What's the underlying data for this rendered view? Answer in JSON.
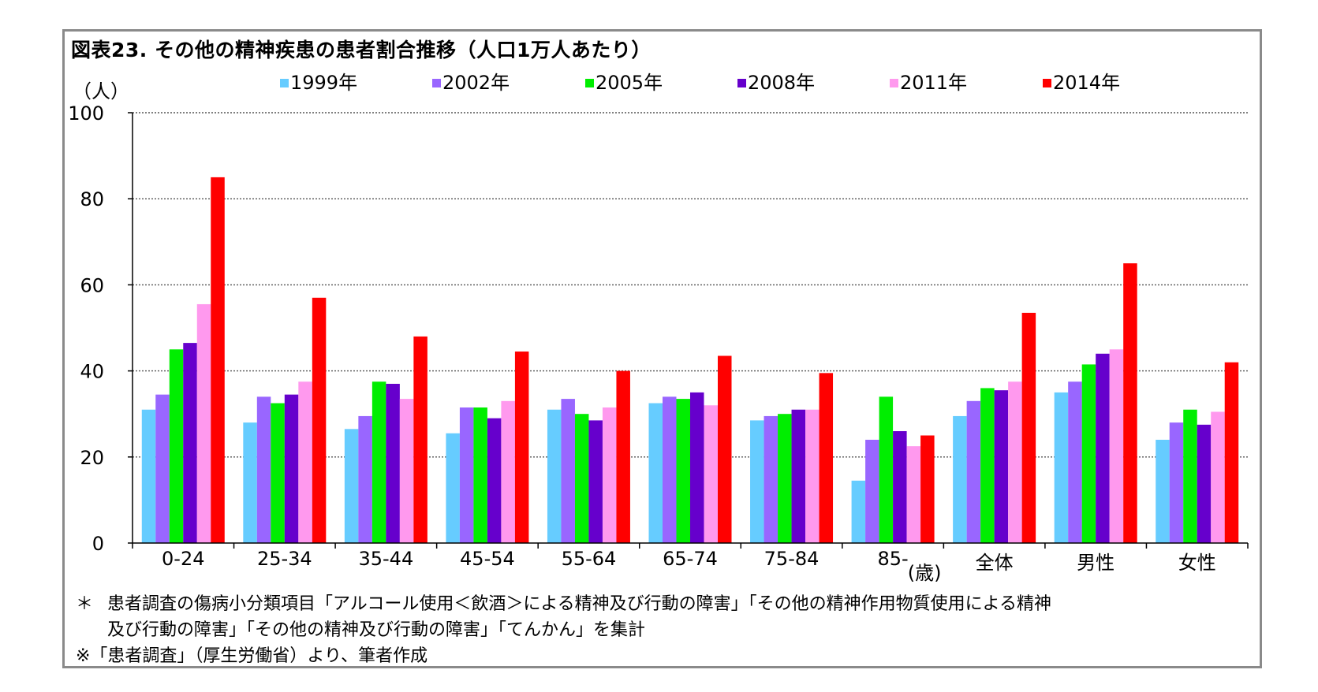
{
  "title": "図表23. その他の精神疾患の患者割合推移（人口1万人あたり）",
  "unit_label": "（人）",
  "colors": {
    "1999年": "#66ccff",
    "2002年": "#9966ff",
    "2005年": "#00ee00",
    "2008年": "#6600cc",
    "2011年": "#ff99ee",
    "2014年": "#ff0000"
  },
  "chart_data": {
    "type": "bar",
    "title": "図表23. その他の精神疾患の患者割合推移（人口1万人あたり）",
    "ylabel": "（人）",
    "xlabel": "",
    "x_unit_label": "(歳)",
    "ylim": [
      0,
      100
    ],
    "yticks": [
      0,
      20,
      40,
      60,
      80,
      100
    ],
    "grid": true,
    "legend_position": "top",
    "categories": [
      "0-24",
      "25-34",
      "35-44",
      "45-54",
      "55-64",
      "65-74",
      "75-84",
      "85-",
      "全体",
      "男性",
      "女性"
    ],
    "series": [
      {
        "name": "1999年",
        "values": [
          31,
          28,
          26.5,
          25.5,
          31,
          32.5,
          28.5,
          14.5,
          29.5,
          35,
          24
        ]
      },
      {
        "name": "2002年",
        "values": [
          34.5,
          34,
          29.5,
          31.5,
          33.5,
          34,
          29.5,
          24,
          33,
          37.5,
          28
        ]
      },
      {
        "name": "2005年",
        "values": [
          45,
          32.5,
          37.5,
          31.5,
          30,
          33.5,
          30,
          34,
          36,
          41.5,
          31
        ]
      },
      {
        "name": "2008年",
        "values": [
          46.5,
          34.5,
          37,
          29,
          28.5,
          35,
          31,
          26,
          35.5,
          44,
          27.5
        ]
      },
      {
        "name": "2011年",
        "values": [
          55.5,
          37.5,
          33.5,
          33,
          31.5,
          32,
          31,
          22.5,
          37.5,
          45,
          30.5
        ]
      },
      {
        "name": "2014年",
        "values": [
          85,
          57,
          48,
          44.5,
          40,
          43.5,
          39.5,
          25,
          53.5,
          65,
          42
        ]
      }
    ]
  },
  "notes": {
    "line1_mark": "＊",
    "line1": "患者調査の傷病小分類項目「アルコール使用＜飲酒＞による精神及び行動の障害」「その他の精神作用物質使用による精神",
    "line2": "及び行動の障害」「その他の精神及び行動の障害」「てんかん」を集計",
    "line3": "※「患者調査」（厚生労働省）より、筆者作成"
  }
}
